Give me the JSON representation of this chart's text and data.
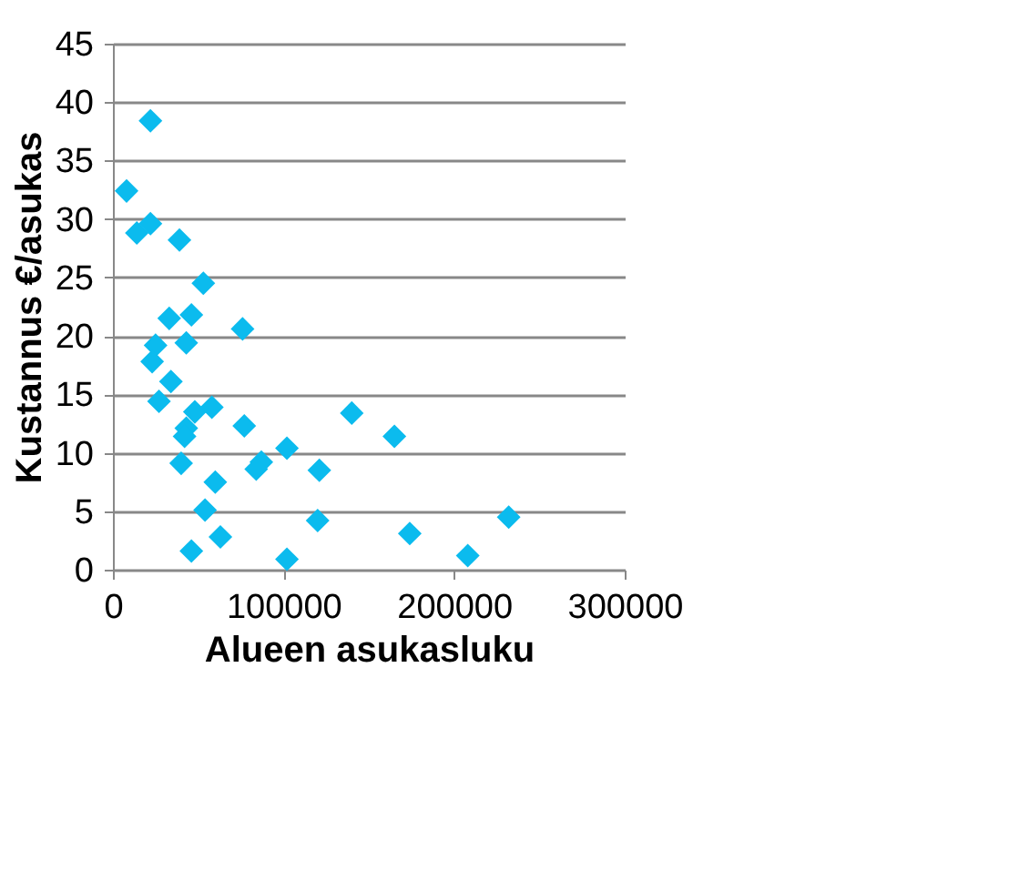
{
  "chart_data": {
    "type": "scatter",
    "xlabel": "Alueen asukasluku",
    "ylabel": "Kustannus €/asukas",
    "series": [
      {
        "color": "#0bbbee",
        "x": [
          8000,
          22000,
          14000,
          22000,
          39000,
          53000,
          33000,
          46000,
          76000,
          43000,
          25000,
          23000,
          34000,
          27000,
          48000,
          58000,
          43000,
          42000,
          77000,
          40000,
          60000,
          87000,
          84000,
          102000,
          121000,
          54000,
          120000,
          140000,
          165000,
          174000,
          208000,
          232000,
          46000,
          63000,
          102000
        ],
        "values": [
          32.4,
          38.4,
          28.8,
          29.6,
          28.2,
          24.5,
          21.5,
          21.8,
          20.6,
          19.4,
          19.2,
          17.8,
          16.1,
          14.4,
          13.5,
          13.9,
          12.1,
          11.4,
          12.3,
          9.1,
          7.5,
          9.2,
          8.6,
          10.4,
          8.5,
          5.1,
          4.2,
          13.4,
          11.4,
          3.1,
          1.2,
          4.5,
          1.6,
          2.8,
          0.9
        ]
      }
    ],
    "xlim": [
      0,
      300000
    ],
    "xticks": [
      0,
      100000,
      200000,
      300000
    ],
    "ylim": [
      0,
      45
    ],
    "yticks": [
      0,
      5,
      10,
      15,
      20,
      25,
      30,
      35,
      40,
      45
    ],
    "grid": "y",
    "marker": "diamond"
  }
}
